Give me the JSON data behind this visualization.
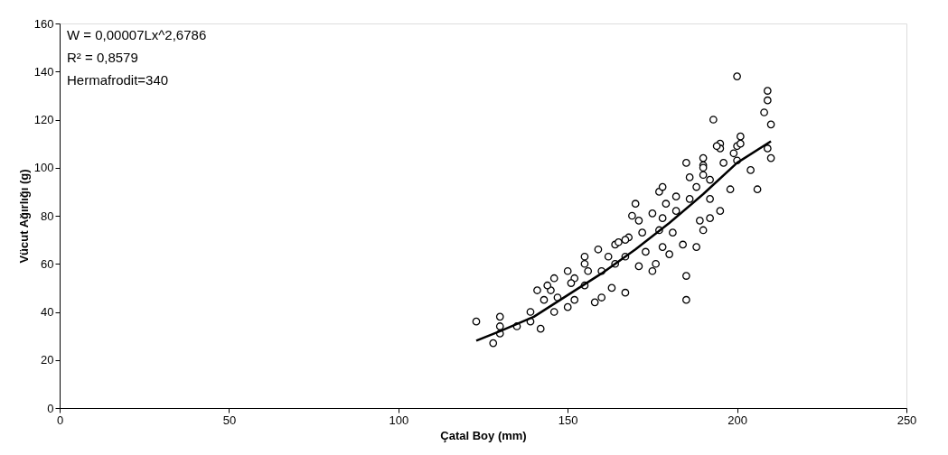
{
  "chart_data": {
    "type": "scatter",
    "xlabel": "Çatal Boy (mm)",
    "ylabel": "Vücut Ağırlığı (g)",
    "xlim": [
      0,
      250
    ],
    "xticks": [
      0,
      50,
      100,
      150,
      200,
      250
    ],
    "ylim": [
      0,
      160
    ],
    "yticks": [
      0,
      20,
      40,
      60,
      80,
      100,
      120,
      140,
      160
    ],
    "grid": false,
    "annotations": [
      "W = 0,00007Lx^2,6786",
      "R² = 0,8579",
      "Hermafrodit=340"
    ],
    "series": [
      {
        "marker": "circle",
        "color": "#000000",
        "x": [
          123,
          128,
          130,
          130,
          130,
          135,
          139,
          139,
          141,
          142,
          143,
          145,
          146,
          146,
          150,
          150,
          152,
          155,
          155,
          158,
          159,
          160,
          163,
          164,
          165,
          167,
          167,
          168,
          170,
          169,
          171,
          175,
          175,
          176,
          177,
          178,
          178,
          180,
          179,
          182,
          185,
          185,
          185,
          184,
          186,
          188,
          190,
          190,
          190,
          192,
          192,
          195,
          195,
          196,
          198,
          199,
          200,
          204,
          206,
          209,
          210,
          152,
          156,
          160,
          162,
          164,
          167,
          172,
          177,
          178,
          182,
          186,
          188,
          189,
          192,
          155,
          151,
          147,
          144,
          171,
          173,
          181,
          193,
          200,
          209,
          209,
          208,
          210,
          201,
          201,
          200,
          195,
          194,
          190,
          190
        ],
        "values": [
          36,
          27,
          38,
          34,
          31,
          34,
          40,
          36,
          49,
          33,
          45,
          49,
          54,
          40,
          57,
          42,
          45,
          60,
          51,
          44,
          66,
          46,
          50,
          68,
          69,
          48,
          63,
          71,
          85,
          80,
          78,
          81,
          57,
          60,
          90,
          92,
          67,
          64,
          85,
          88,
          102,
          55,
          45,
          68,
          96,
          67,
          101,
          104,
          74,
          79,
          87,
          82,
          110,
          102,
          91,
          106,
          109,
          99,
          91,
          108,
          104,
          54,
          57,
          57,
          63,
          60,
          70,
          73,
          74,
          79,
          82,
          87,
          92,
          78,
          95,
          63,
          52,
          46,
          51,
          59,
          65,
          73,
          120,
          138,
          132,
          128,
          123,
          118,
          113,
          110,
          103,
          108,
          109,
          100,
          97
        ]
      },
      {
        "type": "line",
        "color": "#000000",
        "x": [
          123,
          130,
          140,
          150,
          160,
          170,
          180,
          190,
          200,
          210
        ],
        "values": [
          28,
          32,
          38,
          47,
          56,
          66,
          77,
          89,
          102,
          111
        ]
      }
    ]
  }
}
